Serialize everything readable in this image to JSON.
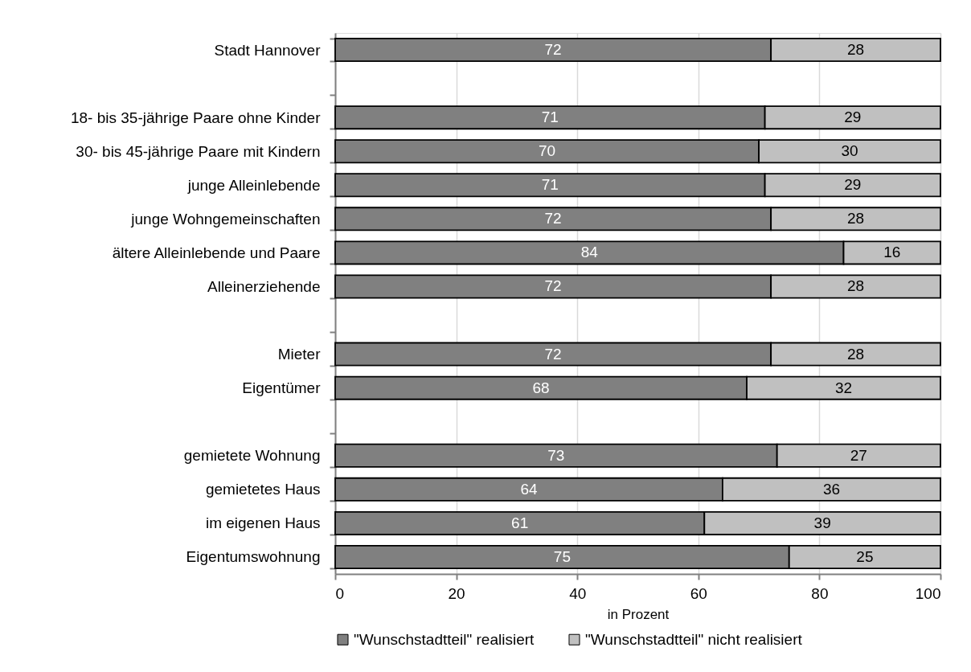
{
  "chart_data": {
    "type": "bar",
    "orientation": "horizontal",
    "stacked": true,
    "xlabel": "in Prozent",
    "categories": [
      "Stadt Hannover",
      null,
      "18- bis 35-jährige Paare ohne Kinder",
      "30- bis 45-jährige Paare mit Kindern",
      "junge Alleinlebende",
      "junge Wohngemeinschaften",
      "ältere Alleinlebende und Paare",
      "Alleinerziehende",
      null,
      "Mieter",
      "Eigentümer",
      null,
      "gemietete Wohnung",
      "gemietetes Haus",
      "im eigenen Haus",
      "Eigentumswohnung"
    ],
    "series": [
      {
        "name": "\"Wunschstadtteil\" realisiert",
        "color": "#808080",
        "values": [
          72,
          null,
          71,
          70,
          71,
          72,
          84,
          72,
          null,
          72,
          68,
          null,
          73,
          64,
          61,
          75
        ]
      },
      {
        "name": "\"Wunschstadtteil\" nicht realisiert",
        "color": "#c0c0c0",
        "values": [
          28,
          null,
          29,
          30,
          29,
          28,
          16,
          28,
          null,
          28,
          32,
          null,
          27,
          36,
          39,
          25
        ]
      }
    ],
    "xlim": [
      0,
      100
    ],
    "xticks": [
      0,
      20,
      40,
      60,
      80,
      100
    ],
    "grid": "x",
    "legend": "bottom",
    "data_labels": true
  }
}
